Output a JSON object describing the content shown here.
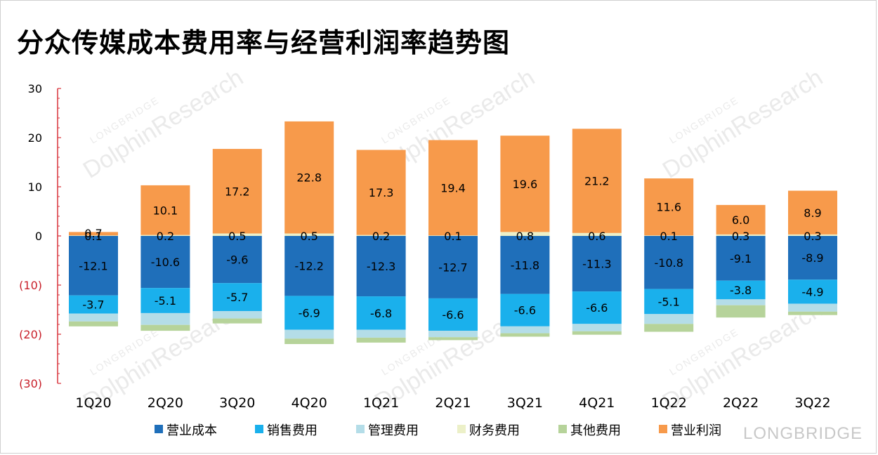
{
  "title": "分众传媒成本费用率与经营利润率趋势图",
  "brand": "LONGBRIDGE",
  "watermark": [
    "LONGBRIDGE",
    "DolphinResearch"
  ],
  "chart_data": {
    "type": "bar",
    "stacked": true,
    "title": "分众传媒成本费用率与经营利润率趋势图",
    "categories": [
      "1Q20",
      "2Q20",
      "3Q20",
      "4Q20",
      "1Q21",
      "2Q21",
      "3Q21",
      "4Q21",
      "1Q22",
      "2Q22",
      "3Q22"
    ],
    "ylim": [
      -30,
      30
    ],
    "yticks": [
      30,
      20,
      10,
      0,
      -10,
      -20,
      -30
    ],
    "ytick_labels": [
      "30",
      "20",
      "10",
      "0",
      "(10)",
      "(20)",
      "(30)"
    ],
    "series": [
      {
        "name": "营业成本",
        "color": "#1f6fba",
        "values": [
          -12.1,
          -10.6,
          -9.6,
          -12.2,
          -12.3,
          -12.7,
          -11.8,
          -11.3,
          -10.8,
          -9.1,
          -8.9
        ],
        "labels": true
      },
      {
        "name": "销售费用",
        "color": "#1ab0ec",
        "values": [
          -3.7,
          -5.1,
          -5.7,
          -6.9,
          -6.8,
          -6.6,
          -6.6,
          -6.6,
          -5.1,
          -3.8,
          -4.9
        ],
        "labels": true
      },
      {
        "name": "管理费用",
        "color": "#b4dde8",
        "values": [
          -1.6,
          -2.4,
          -1.5,
          -1.8,
          -1.6,
          -1.3,
          -1.4,
          -1.5,
          -2.0,
          -1.2,
          -1.6
        ],
        "labels": false
      },
      {
        "name": "财务费用",
        "color": "#ecf0c8",
        "values": [
          0.1,
          0.2,
          0.5,
          0.5,
          0.2,
          0.1,
          0.8,
          0.6,
          0.1,
          0.3,
          0.3
        ],
        "labels": true
      },
      {
        "name": "其他费用",
        "color": "#b6d39a",
        "values": [
          -1.0,
          -1.2,
          -1.0,
          -1.1,
          -1.0,
          -0.6,
          -0.7,
          -0.7,
          -1.6,
          -2.5,
          -0.7
        ],
        "labels": false
      },
      {
        "name": "营业利润",
        "color": "#f79a4b",
        "values": [
          0.7,
          10.1,
          17.2,
          22.8,
          17.3,
          19.4,
          19.6,
          21.2,
          11.6,
          6.0,
          8.9
        ],
        "labels": true
      }
    ],
    "legend": [
      "营业成本",
      "销售费用",
      "管理费用",
      "财务费用",
      "其他费用",
      "营业利润"
    ],
    "legend_position": "bottom"
  }
}
